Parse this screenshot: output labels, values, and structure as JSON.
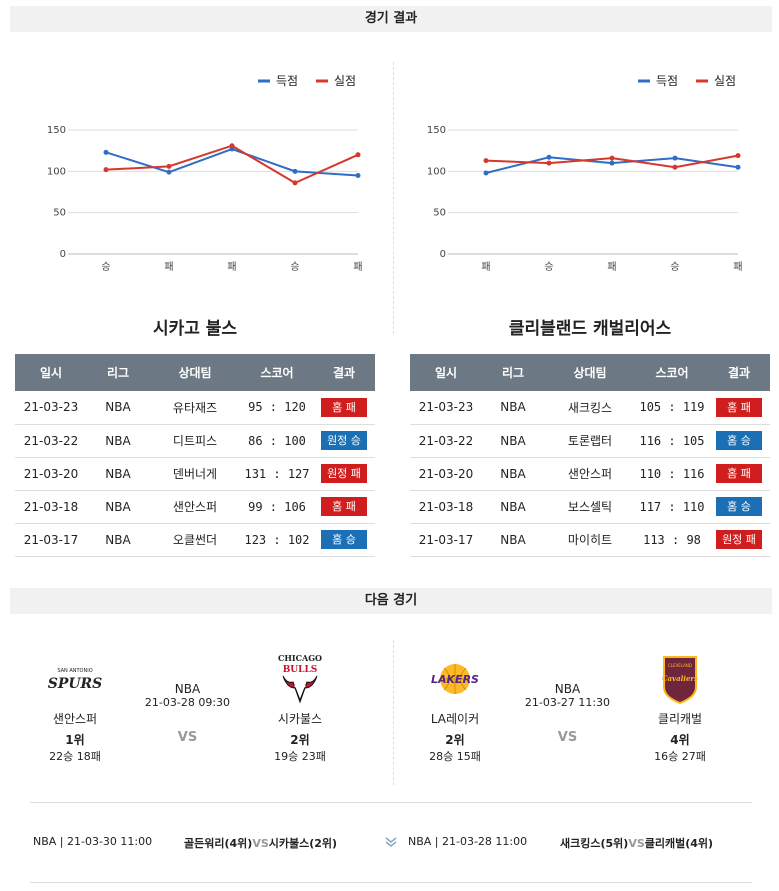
{
  "header": {
    "results_title": "경기 결과",
    "next_title": "다음 경기"
  },
  "legend": {
    "score_label": "득점",
    "allowed_label": "실점",
    "score_color": "#2f6ec4",
    "allowed_color": "#d6382c"
  },
  "chart_data": [
    {
      "type": "line",
      "categories": [
        "승",
        "패",
        "패",
        "승",
        "패"
      ],
      "series": [
        {
          "name": "득점",
          "values": [
            123,
            99,
            127,
            100,
            95
          ]
        },
        {
          "name": "실점",
          "values": [
            102,
            106,
            131,
            86,
            120
          ]
        }
      ],
      "ylim": [
        0,
        150
      ],
      "yticks": [
        0,
        50,
        100,
        150
      ],
      "legend": "top-right",
      "grid": true
    },
    {
      "type": "line",
      "categories": [
        "패",
        "승",
        "패",
        "승",
        "패"
      ],
      "series": [
        {
          "name": "득점",
          "values": [
            98,
            117,
            110,
            116,
            105
          ]
        },
        {
          "name": "실점",
          "values": [
            113,
            110,
            116,
            105,
            119
          ]
        }
      ],
      "ylim": [
        0,
        150
      ],
      "yticks": [
        0,
        50,
        100,
        150
      ],
      "legend": "top-right",
      "grid": true
    }
  ],
  "teams": {
    "left": {
      "title": "시카고 불스",
      "columns": [
        "일시",
        "리그",
        "상대팀",
        "스코어",
        "결과"
      ],
      "rows": [
        {
          "date": "21-03-23",
          "league": "NBA",
          "opp": "유타재즈",
          "score": "95 : 120",
          "result": "홈 패",
          "win": false
        },
        {
          "date": "21-03-22",
          "league": "NBA",
          "opp": "디트피스",
          "score": "86 : 100",
          "result": "원정 승",
          "win": true
        },
        {
          "date": "21-03-20",
          "league": "NBA",
          "opp": "덴버너게",
          "score": "131 : 127",
          "result": "원정 패",
          "win": false
        },
        {
          "date": "21-03-18",
          "league": "NBA",
          "opp": "샌안스퍼",
          "score": "99 : 106",
          "result": "홈 패",
          "win": false
        },
        {
          "date": "21-03-17",
          "league": "NBA",
          "opp": "오클썬더",
          "score": "123 : 102",
          "result": "홈 승",
          "win": true
        }
      ]
    },
    "right": {
      "title": "클리블랜드 캐벌리어스",
      "columns": [
        "일시",
        "리그",
        "상대팀",
        "스코어",
        "결과"
      ],
      "rows": [
        {
          "date": "21-03-23",
          "league": "NBA",
          "opp": "새크킹스",
          "score": "105 : 119",
          "result": "홈 패",
          "win": false
        },
        {
          "date": "21-03-22",
          "league": "NBA",
          "opp": "토론랩터",
          "score": "116 : 105",
          "result": "홈 승",
          "win": true
        },
        {
          "date": "21-03-20",
          "league": "NBA",
          "opp": "샌안스퍼",
          "score": "110 : 116",
          "result": "홈 패",
          "win": false
        },
        {
          "date": "21-03-18",
          "league": "NBA",
          "opp": "보스셀틱",
          "score": "117 : 110",
          "result": "홈 승",
          "win": true
        },
        {
          "date": "21-03-17",
          "league": "NBA",
          "opp": "마이히트",
          "score": "113 : 98",
          "result": "원정 패",
          "win": false
        }
      ]
    }
  },
  "next_matches": [
    {
      "league": "NBA",
      "datetime": "21-03-28 09:30",
      "vs": "VS",
      "home": {
        "name": "샌안스퍼",
        "rank": "1위",
        "record": "22승 18패",
        "logo_text": "SPURS",
        "logo_small": "SAN ANTONIO"
      },
      "away": {
        "name": "시카불스",
        "rank": "2위",
        "record": "19승 23패",
        "logo_text": "BULLS",
        "logo_small": "CHICAGO"
      }
    },
    {
      "league": "NBA",
      "datetime": "21-03-27 11:30",
      "vs": "VS",
      "home": {
        "name": "LA레이커",
        "rank": "2위",
        "record": "28승 15패",
        "logo_text": "LAKERS"
      },
      "away": {
        "name": "클리캐벌",
        "rank": "4위",
        "record": "16승 27패",
        "logo_text": "Cavaliers",
        "logo_small": "CLEVELAND"
      }
    }
  ],
  "schedule": {
    "left_info": "NBA | 21-03-30 11:00",
    "left_teams_a": "골든워리(4위)",
    "left_vs": "VS",
    "left_teams_b": "시카불스(2위)",
    "right_info": "NBA | 21-03-28 11:00",
    "right_teams_a": "새크킹스(5위)",
    "right_vs": "VS",
    "right_teams_b": "클리캐벌(4위)"
  }
}
